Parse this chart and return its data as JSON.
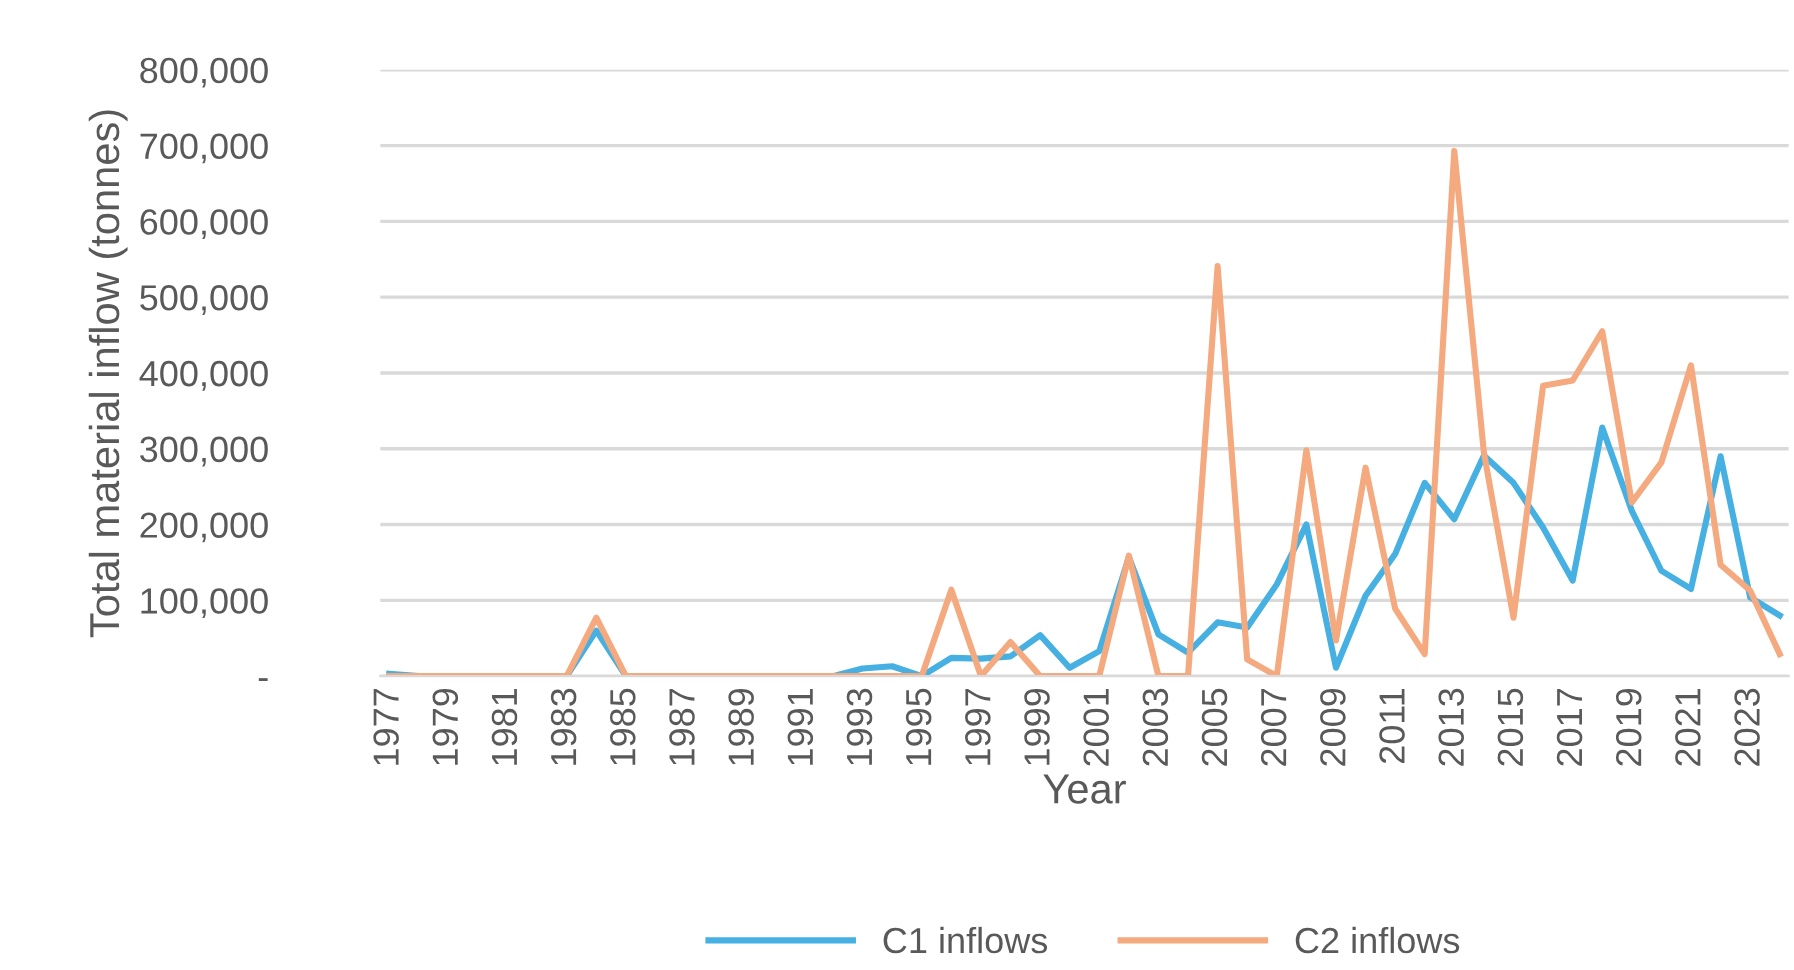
{
  "chart_data": {
    "type": "line",
    "xlabel": "Year",
    "ylabel": "Total material inflow (tonnes)",
    "categories": [
      "1977",
      null,
      "1979",
      null,
      "1981",
      null,
      "1983",
      null,
      "1985",
      null,
      "1987",
      null,
      "1989",
      null,
      "1991",
      null,
      "1993",
      null,
      "1995",
      null,
      "1997",
      null,
      "1999",
      null,
      "2001",
      null,
      "2003",
      null,
      "2005",
      null,
      "2007",
      null,
      "2009",
      null,
      "2011",
      null,
      "2013",
      null,
      "2015",
      null,
      "2017",
      null,
      "2019",
      null,
      "2021",
      null,
      "2023",
      null
    ],
    "series": [
      {
        "name": "C1 inflows",
        "color": "#45b0e1",
        "values": [
          3000,
          0,
          0,
          0,
          0,
          0,
          0,
          60000,
          0,
          0,
          0,
          0,
          0,
          0,
          0,
          0,
          10000,
          13000,
          0,
          24000,
          23000,
          26000,
          54000,
          11000,
          33000,
          157000,
          55000,
          31000,
          71000,
          64000,
          121000,
          200000,
          11000,
          106000,
          161000,
          255000,
          207000,
          291000,
          255000,
          196000,
          126000,
          328000,
          218000,
          139000,
          115000,
          290000,
          104000,
          80000
        ]
      },
      {
        "name": "C2 inflows",
        "color": "#f4a97f",
        "values": [
          0,
          0,
          0,
          0,
          0,
          0,
          0,
          77000,
          0,
          0,
          0,
          0,
          0,
          0,
          0,
          0,
          0,
          0,
          0,
          114000,
          0,
          45000,
          0,
          0,
          0,
          159000,
          0,
          0,
          541000,
          22000,
          0,
          298000,
          47000,
          275000,
          89000,
          29000,
          693000,
          295000,
          77000,
          383000,
          390000,
          455000,
          229000,
          282000,
          410000,
          147000,
          113000,
          29000
        ]
      }
    ],
    "ylim": [
      0,
      800000
    ],
    "yticks": [
      {
        "value": 0,
        "label": "-"
      },
      {
        "value": 100000,
        "label": "100,000"
      },
      {
        "value": 200000,
        "label": "200,000"
      },
      {
        "value": 300000,
        "label": "300,000"
      },
      {
        "value": 400000,
        "label": "400,000"
      },
      {
        "value": 500000,
        "label": "500,000"
      },
      {
        "value": 600000,
        "label": "600,000"
      },
      {
        "value": 700000,
        "label": "700,000"
      },
      {
        "value": 800000,
        "label": "800,000"
      }
    ],
    "grid": "y",
    "legend": "bottom",
    "marker": "none",
    "line_style": "solid"
  }
}
